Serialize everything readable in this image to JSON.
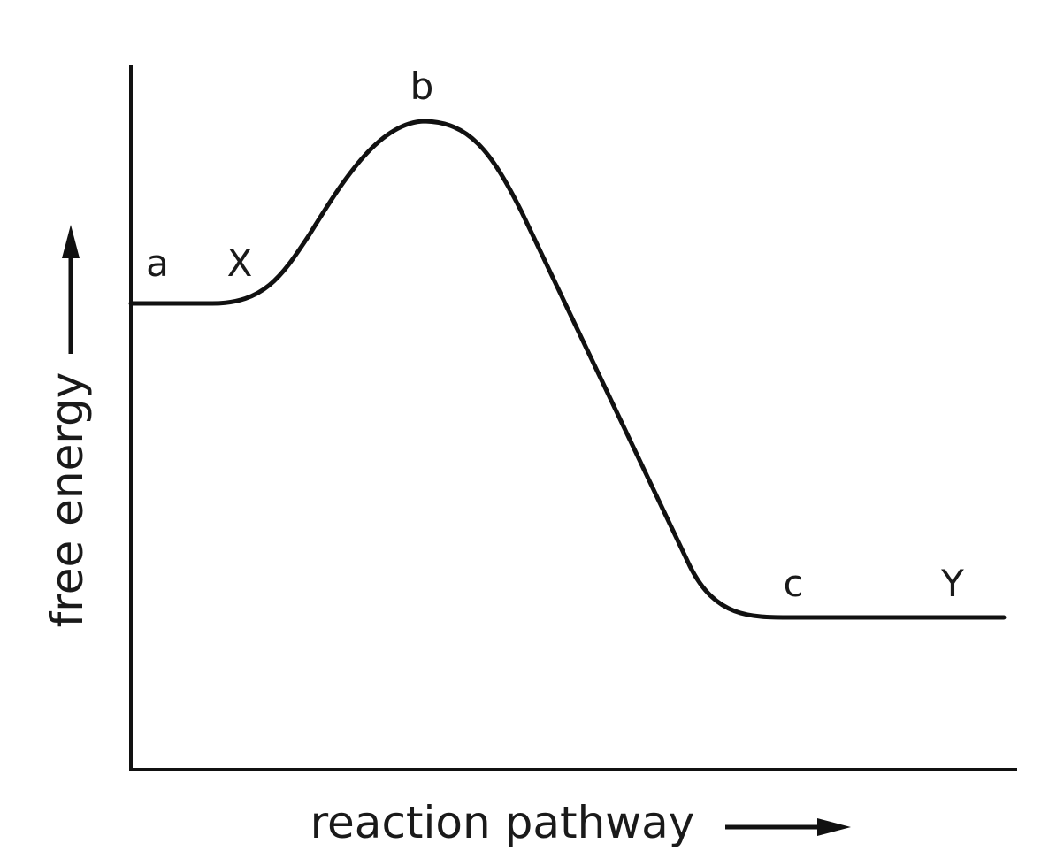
{
  "diagram": {
    "axes": {
      "y_label": "free energy",
      "x_label": "reaction pathway"
    },
    "point_labels": {
      "a": "a",
      "x": "X",
      "b": "b",
      "c": "c",
      "y": "Y"
    },
    "colors": {
      "line": "#111111",
      "background": "#ffffff"
    }
  }
}
